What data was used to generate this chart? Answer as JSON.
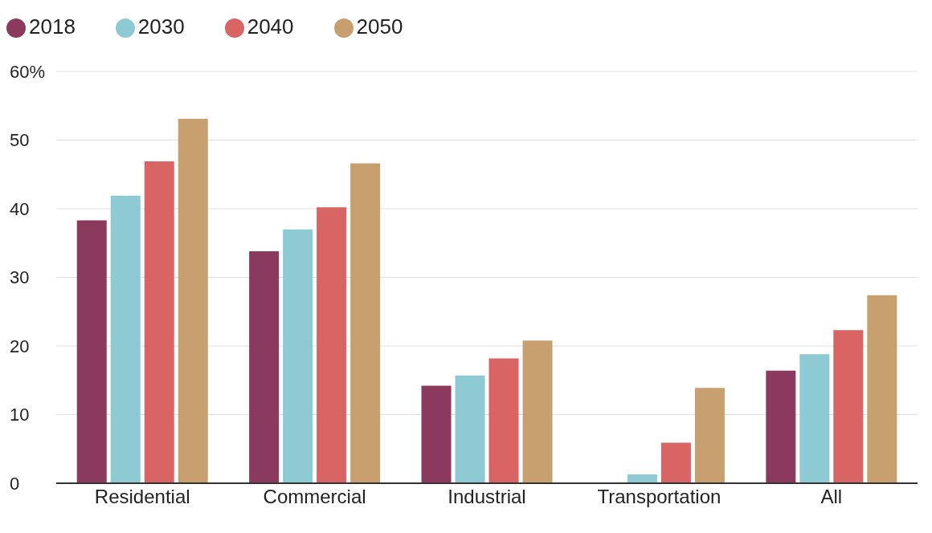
{
  "chart_data": {
    "type": "bar",
    "categories": [
      "Residential",
      "Commercial",
      "Industrial",
      "Transportation",
      "All"
    ],
    "series": [
      {
        "name": "2018",
        "color": "#8b3a5e",
        "values": [
          38.3,
          33.8,
          14.2,
          0,
          16.4
        ]
      },
      {
        "name": "2030",
        "color": "#8ecad4",
        "values": [
          41.9,
          37.0,
          15.7,
          1.3,
          18.8
        ]
      },
      {
        "name": "2040",
        "color": "#d86464",
        "values": [
          46.9,
          40.2,
          18.2,
          5.9,
          22.3
        ]
      },
      {
        "name": "2050",
        "color": "#c8a070",
        "values": [
          53.1,
          46.6,
          20.8,
          13.9,
          27.4
        ]
      }
    ],
    "ylim": [
      0,
      60
    ],
    "yticks": [
      0,
      10,
      20,
      30,
      40,
      50,
      {
        "value": 60,
        "label": "60%"
      }
    ],
    "grid": "y",
    "legend": "top left"
  }
}
